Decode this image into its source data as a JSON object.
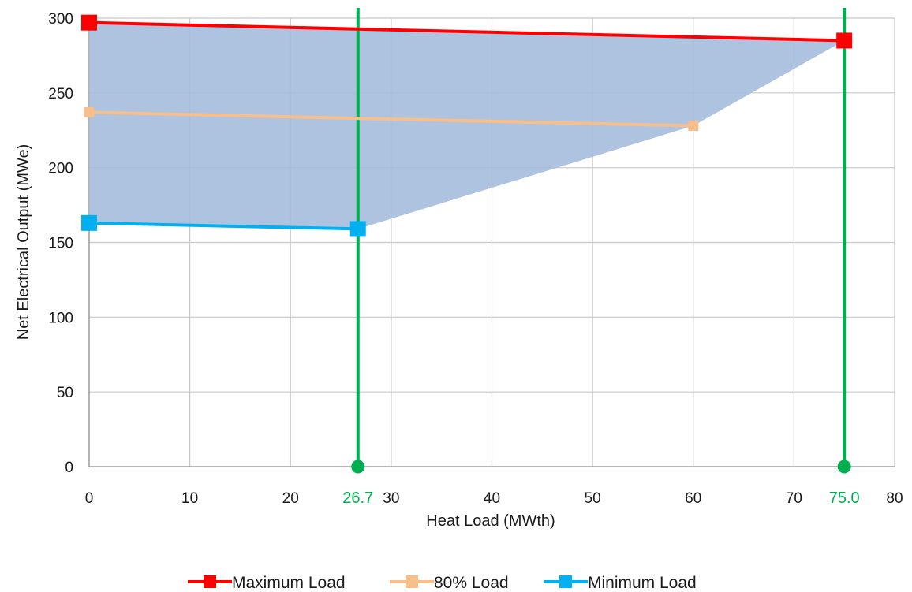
{
  "chart_data": {
    "type": "line",
    "xlabel": "Heat Load (MWth)",
    "ylabel": "Net Electrical Output (MWe)",
    "xlim": [
      0,
      80
    ],
    "ylim": [
      0,
      300
    ],
    "xticks": [
      0,
      10,
      20,
      30,
      40,
      50,
      60,
      70,
      80
    ],
    "yticks": [
      0,
      50,
      100,
      150,
      200,
      250,
      300
    ],
    "grid": true,
    "legend_position": "bottom",
    "series": [
      {
        "name": "Maximum Load",
        "color": "#ff0000",
        "marker": "square",
        "x": [
          0,
          75.0
        ],
        "y": [
          297,
          285
        ]
      },
      {
        "name": "80% Load",
        "color": "#f8be8c",
        "marker": "square",
        "x": [
          0,
          60
        ],
        "y": [
          237,
          228
        ]
      },
      {
        "name": "Minimum Load",
        "color": "#00b0f0",
        "marker": "square",
        "x": [
          0,
          26.7
        ],
        "y": [
          163,
          159
        ]
      }
    ],
    "shaded_region": {
      "color": "#a4bcdc",
      "polygon": [
        [
          0,
          297
        ],
        [
          75.0,
          285
        ],
        [
          60,
          228
        ],
        [
          26.7,
          159
        ],
        [
          0,
          163
        ]
      ]
    },
    "vertical_lines": [
      {
        "x": 26.7,
        "label": "26.7",
        "color": "#00b050"
      },
      {
        "x": 75.0,
        "label": "75.0",
        "color": "#00b050"
      }
    ]
  }
}
